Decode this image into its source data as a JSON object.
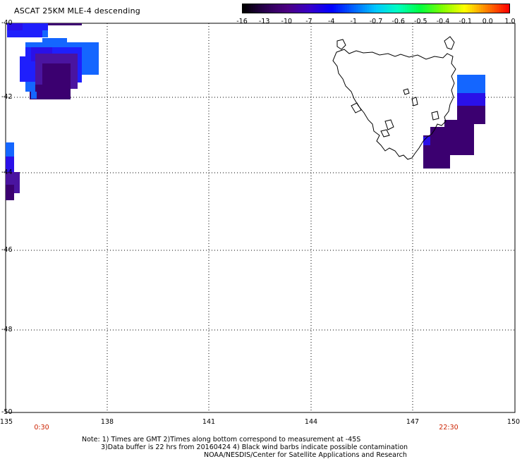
{
  "title": "ASCAT 25KM MLE-4 descending",
  "colorbar": {
    "labels": [
      "-16",
      "-13",
      "-10",
      "-7",
      "-4",
      "-1",
      "-0.7",
      "-0.6",
      "-0.5",
      "-0.4",
      "-0.1",
      "0.0",
      "1.0"
    ],
    "colors": [
      "#000000",
      "#2a0050",
      "#4b0082",
      "#3800c8",
      "#0000ff",
      "#0064ff",
      "#00c8ff",
      "#00ffc0",
      "#00ff40",
      "#80ff00",
      "#ffff00",
      "#ff8000",
      "#ff0000"
    ]
  },
  "map": {
    "lat_labels": [
      "-40",
      "-42",
      "-44",
      "-46",
      "-48",
      "-50"
    ],
    "lon_labels": [
      "135",
      "138",
      "141",
      "144",
      "147",
      "150"
    ],
    "lon_range": [
      135,
      150
    ],
    "lat_range": [
      -50,
      -40
    ],
    "time_labels": [
      {
        "text": "0:30",
        "lon": 136.05
      },
      {
        "text": "22:30",
        "lon": 148.0
      }
    ],
    "colors": {
      "deep_purple": "#3b0070",
      "dark_violet": "#4a14a0",
      "blue_violet": "#2a10e8",
      "blue": "#1f1ffc",
      "light_blue": "#1466ff",
      "coast": "#000000"
    }
  },
  "notes": {
    "line1": "Note: 1) Times are GMT 2)Times along bottom correspond to measurement at -45S",
    "line2": "3)Data buffer is 22 hrs from 20160424 4) Black wind barbs indicate possible contamination",
    "line3": "NOAA/NESDIS/Center for Satellite Applications and Research"
  }
}
